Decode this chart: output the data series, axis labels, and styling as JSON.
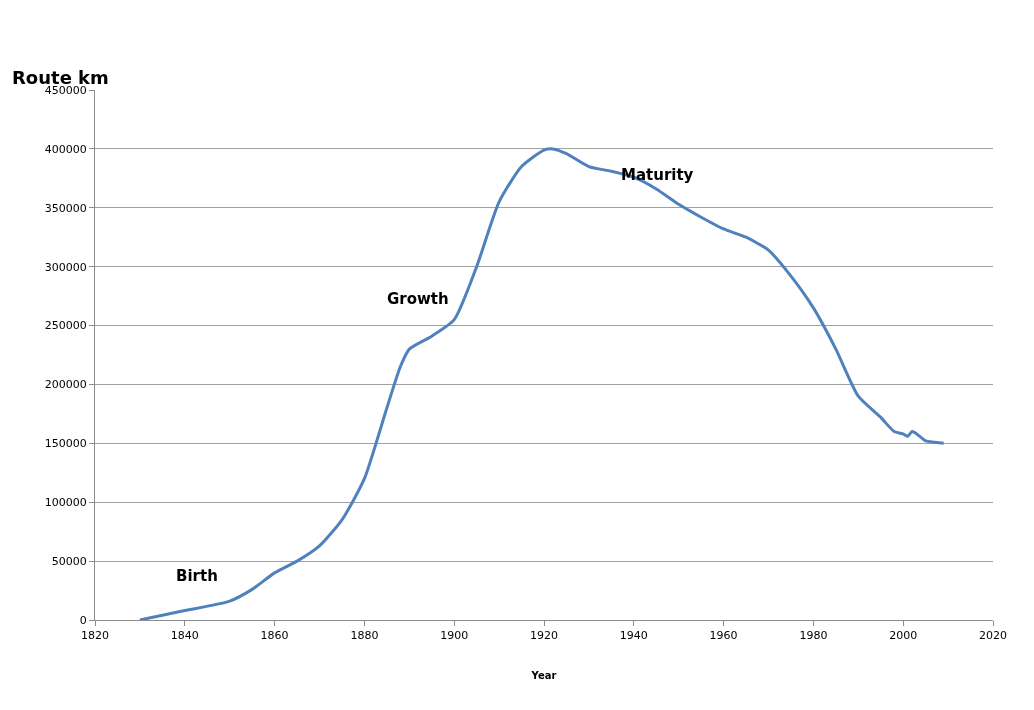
{
  "chart_data": {
    "type": "line",
    "ylabel": "Route km",
    "xlabel": "Year",
    "x": [
      1830,
      1840,
      1850,
      1855,
      1860,
      1865,
      1870,
      1875,
      1880,
      1885,
      1888,
      1890,
      1895,
      1900,
      1905,
      1910,
      1915,
      1920,
      1922,
      1925,
      1930,
      1935,
      1940,
      1945,
      1950,
      1955,
      1960,
      1965,
      1970,
      1975,
      1980,
      1985,
      1990,
      1995,
      1998,
      2000,
      2001,
      2002,
      2003,
      2005,
      2007,
      2009
    ],
    "series": [
      {
        "color": "#4f81bd",
        "values": [
          0,
          8000,
          16000,
          26000,
          40000,
          50000,
          63000,
          85000,
          120000,
          180000,
          215000,
          230000,
          241000,
          255000,
          300000,
          355000,
          385000,
          399000,
          400000,
          396000,
          385000,
          381000,
          376000,
          366000,
          353000,
          342000,
          332000,
          325000,
          314000,
          292000,
          265000,
          230000,
          190000,
          172000,
          160000,
          158000,
          156000,
          160000,
          158000,
          152000,
          151000,
          150000
        ]
      }
    ],
    "xlim": [
      1820,
      2020
    ],
    "xticks": [
      1820,
      1840,
      1860,
      1880,
      1900,
      1920,
      1940,
      1960,
      1980,
      2000,
      2020
    ],
    "ylim": [
      0,
      450000
    ],
    "yticks": [
      0,
      50000,
      100000,
      150000,
      200000,
      250000,
      300000,
      350000,
      400000,
      450000
    ],
    "grid": "y",
    "marker": "none",
    "line_style": "solid",
    "annotations": [
      "Birth",
      "Growth",
      "Maturity"
    ]
  }
}
